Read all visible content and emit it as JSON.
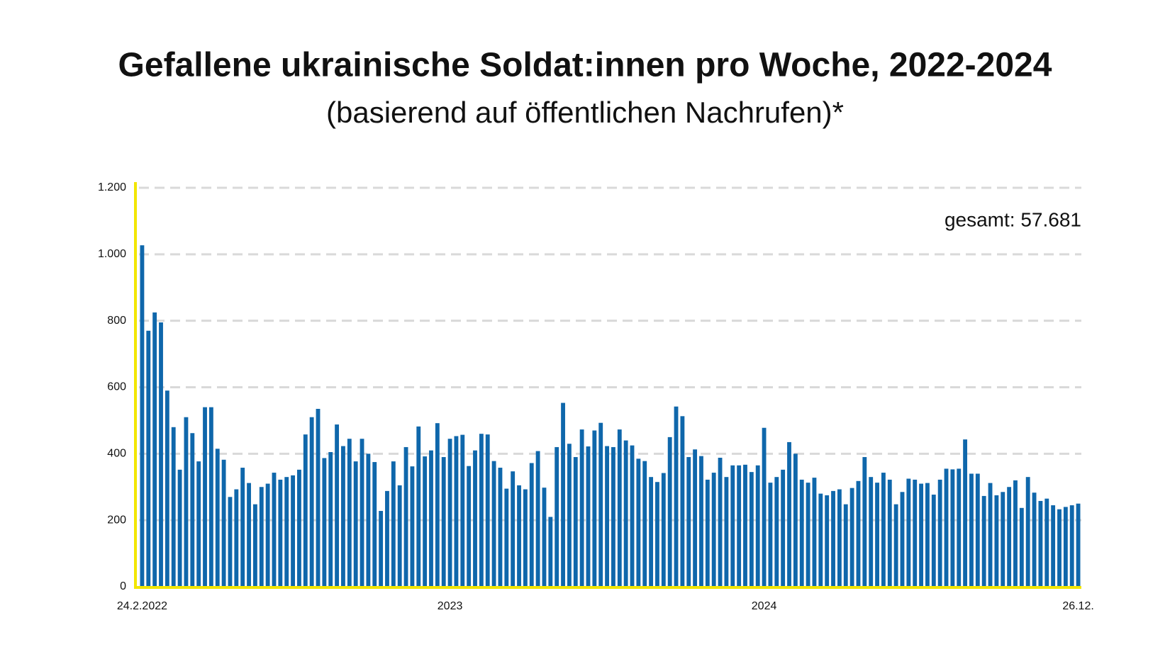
{
  "chart_data": {
    "type": "bar",
    "title": "Gefallene ukrainische Soldat:innen pro Woche, 2022-2024",
    "subtitle": "(basierend auf öffentlichen Nachrufen)*",
    "annotation": "gesamt: 57.681",
    "color": "#0f67ab",
    "grid": true,
    "ylim": [
      0,
      1200
    ],
    "yticks": [
      0,
      200,
      400,
      600,
      800,
      {
        "value": 1000,
        "label": "1.000"
      },
      {
        "value": 1200,
        "label": "1.200"
      }
    ],
    "categories": [
      "24.2.2022",
      null,
      null,
      null,
      null,
      null,
      null,
      null,
      null,
      null,
      null,
      null,
      null,
      null,
      null,
      null,
      null,
      null,
      null,
      null,
      null,
      null,
      null,
      null,
      null,
      null,
      null,
      null,
      null,
      null,
      null,
      null,
      null,
      null,
      null,
      null,
      null,
      null,
      null,
      null,
      null,
      null,
      null,
      null,
      null,
      null,
      null,
      null,
      null,
      "2023",
      null,
      null,
      null,
      null,
      null,
      null,
      null,
      null,
      null,
      null,
      null,
      null,
      null,
      null,
      null,
      null,
      null,
      null,
      null,
      null,
      null,
      null,
      null,
      null,
      null,
      null,
      null,
      null,
      null,
      null,
      null,
      null,
      null,
      null,
      null,
      null,
      null,
      null,
      null,
      null,
      null,
      null,
      null,
      null,
      null,
      null,
      null,
      null,
      null,
      "2024",
      null,
      null,
      null,
      null,
      null,
      null,
      null,
      null,
      null,
      null,
      null,
      null,
      null,
      null,
      null,
      null,
      null,
      null,
      null,
      null,
      null,
      null,
      null,
      null,
      null,
      null,
      null,
      null,
      null,
      null,
      null,
      null,
      null,
      null,
      null,
      null,
      null,
      null,
      null,
      null,
      null,
      null,
      null,
      null,
      null,
      null,
      null,
      null,
      null,
      "26.12."
    ],
    "values": [
      1027,
      770,
      825,
      795,
      590,
      480,
      352,
      510,
      462,
      377,
      540,
      540,
      415,
      382,
      270,
      293,
      358,
      312,
      248,
      300,
      310,
      343,
      322,
      330,
      335,
      352,
      458,
      510,
      535,
      387,
      405,
      488,
      423,
      445,
      377,
      445,
      400,
      375,
      228,
      288,
      377,
      305,
      420,
      362,
      482,
      392,
      410,
      492,
      390,
      445,
      453,
      457,
      363,
      410,
      460,
      458,
      378,
      358,
      295,
      347,
      305,
      293,
      372,
      408,
      298,
      210,
      420,
      553,
      430,
      390,
      473,
      422,
      470,
      493,
      423,
      420,
      473,
      440,
      425,
      385,
      378,
      330,
      315,
      342,
      450,
      542,
      513,
      390,
      413,
      393,
      322,
      343,
      388,
      330,
      365,
      365,
      367,
      345,
      365,
      478,
      313,
      330,
      352,
      435,
      400,
      322,
      313,
      328,
      280,
      275,
      288,
      293,
      248,
      297,
      318,
      390,
      330,
      313,
      343,
      322,
      248,
      285,
      325,
      322,
      310,
      312,
      277,
      322,
      355,
      353,
      355,
      443,
      340,
      340,
      273,
      312,
      275,
      285,
      300,
      320,
      237,
      330,
      283,
      258,
      265,
      245,
      233,
      240,
      245,
      250
    ]
  }
}
